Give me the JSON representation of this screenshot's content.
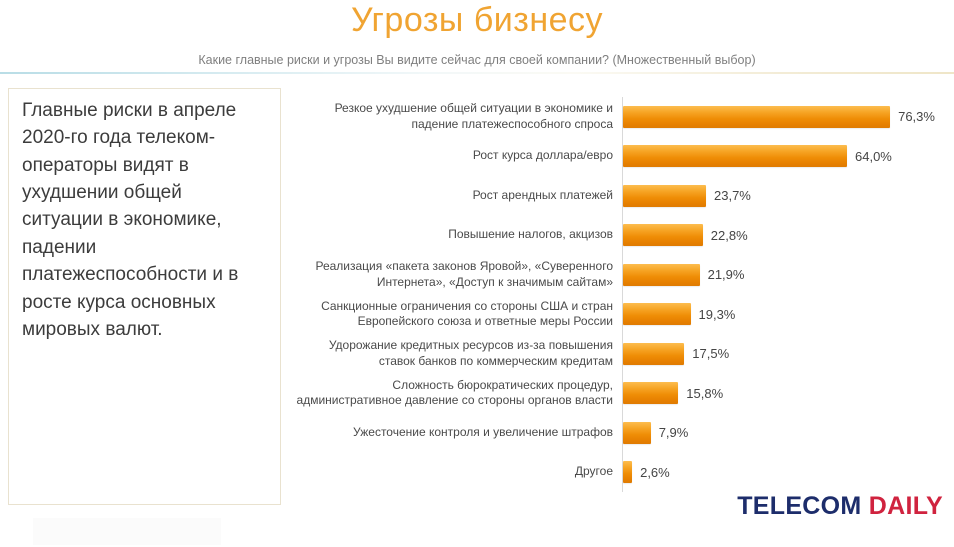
{
  "header": {
    "title": "Угрозы бизнесу",
    "subtitle": "Какие главные риски и угрозы Вы видите сейчас для своей компании? (Множественный выбор)"
  },
  "summary_box": {
    "text": "Главные риски в апреле 2020-го года телеком-операторы видят в ухудшении общей ситуации в экономике, падении платежеспособности и в росте курса основных мировых валют."
  },
  "chart_data": {
    "type": "bar",
    "orientation": "horizontal",
    "title": "Угрозы бизнесу",
    "xlabel": "",
    "ylabel": "",
    "xlim": [
      0,
      80
    ],
    "grid": false,
    "legend": false,
    "bar_color": "#ee8a05",
    "categories": [
      "Резкое ухудшение общей ситуации в экономике и падение платежеспособного спроса",
      "Рост курса доллара/евро",
      "Рост арендных платежей",
      "Повышение налогов, акцизов",
      "Реализация «пакета законов Яровой», «Суверенного Интернета», «Доступ к значимым сайтам»",
      "Санкционные ограничения со стороны США и стран Европейского союза и ответные меры России",
      "Удорожание кредитных ресурсов из-за повышения ставок банков по коммерческим кредитам",
      "Сложность бюрократических процедур, административное давление со стороны органов власти",
      "Ужесточение контроля и увеличение штрафов",
      "Другое"
    ],
    "values": [
      76.3,
      64.0,
      23.7,
      22.8,
      21.9,
      19.3,
      17.5,
      15.8,
      7.9,
      2.6
    ],
    "value_labels": [
      "76,3%",
      "64,0%",
      "23,7%",
      "22,8%",
      "21,9%",
      "19,3%",
      "17,5%",
      "15,8%",
      "7,9%",
      "2,6%"
    ]
  },
  "logo": {
    "part1": "TELECOM",
    "part2": "DAILY",
    "color1": "#1d2d6b",
    "color2": "#d0233f"
  }
}
